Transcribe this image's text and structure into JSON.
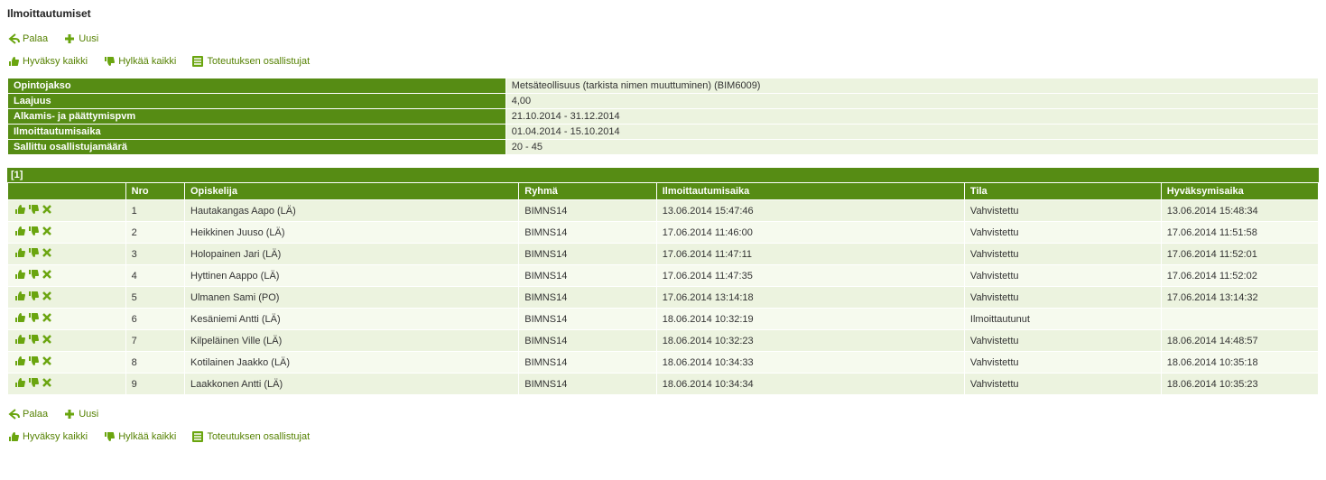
{
  "page": {
    "title": "Ilmoittautumiset"
  },
  "actions": {
    "back": "Palaa",
    "new": "Uusi",
    "accept_all": "Hyväksy kaikki",
    "reject_all": "Hylkää kaikki",
    "participants": "Toteutuksen osallistujat"
  },
  "info": {
    "labels": {
      "course": "Opintojakso",
      "extent": "Laajuus",
      "dates": "Alkamis- ja päättymispvm",
      "reg_period": "Ilmoittautumisaika",
      "allowed": "Sallittu osallistujamäärä"
    },
    "values": {
      "course": "Metsäteollisuus (tarkista nimen muuttuminen) (BIM6009)",
      "extent": "4,00",
      "dates": "21.10.2014 - 31.12.2014",
      "reg_period": "01.04.2014 - 15.10.2014",
      "allowed": "20 - 45"
    }
  },
  "pager": "[1]",
  "columns": {
    "actions": "",
    "nro": "Nro",
    "student": "Opiskelija",
    "group": "Ryhmä",
    "reg_time": "Ilmoittautumisaika",
    "status": "Tila",
    "accept_time": "Hyväksymisaika"
  },
  "col_widths": {
    "actions": "9%",
    "nro": "4.5%",
    "student": "25.5%",
    "group": "10.5%",
    "reg_time": "23.5%",
    "status": "15%",
    "accept_time": "12%"
  },
  "rows": [
    {
      "nro": "1",
      "student": "Hautakangas Aapo (LÄ)",
      "group": "BIMNS14",
      "reg_time": "13.06.2014 15:47:46",
      "status": "Vahvistettu",
      "accept_time": "13.06.2014 15:48:34"
    },
    {
      "nro": "2",
      "student": "Heikkinen Juuso (LÄ)",
      "group": "BIMNS14",
      "reg_time": "17.06.2014 11:46:00",
      "status": "Vahvistettu",
      "accept_time": "17.06.2014 11:51:58"
    },
    {
      "nro": "3",
      "student": "Holopainen Jari (LÄ)",
      "group": "BIMNS14",
      "reg_time": "17.06.2014 11:47:11",
      "status": "Vahvistettu",
      "accept_time": "17.06.2014 11:52:01"
    },
    {
      "nro": "4",
      "student": "Hyttinen Aappo (LÄ)",
      "group": "BIMNS14",
      "reg_time": "17.06.2014 11:47:35",
      "status": "Vahvistettu",
      "accept_time": "17.06.2014 11:52:02"
    },
    {
      "nro": "5",
      "student": "Ulmanen Sami (PO)",
      "group": "BIMNS14",
      "reg_time": "17.06.2014 13:14:18",
      "status": "Vahvistettu",
      "accept_time": "17.06.2014 13:14:32"
    },
    {
      "nro": "6",
      "student": "Kesäniemi Antti (LÄ)",
      "group": "BIMNS14",
      "reg_time": "18.06.2014 10:32:19",
      "status": "Ilmoittautunut",
      "accept_time": ""
    },
    {
      "nro": "7",
      "student": "Kilpeläinen Ville (LÄ)",
      "group": "BIMNS14",
      "reg_time": "18.06.2014 10:32:23",
      "status": "Vahvistettu",
      "accept_time": "18.06.2014 14:48:57"
    },
    {
      "nro": "8",
      "student": "Kotilainen Jaakko (LÄ)",
      "group": "BIMNS14",
      "reg_time": "18.06.2014 10:34:33",
      "status": "Vahvistettu",
      "accept_time": "18.06.2014 10:35:18"
    },
    {
      "nro": "9",
      "student": "Laakkonen Antti (LÄ)",
      "group": "BIMNS14",
      "reg_time": "18.06.2014 10:34:34",
      "status": "Vahvistettu",
      "accept_time": "18.06.2014 10:35:23"
    }
  ],
  "colors": {
    "header_bg": "#568c14",
    "row_odd": "#ecf3df",
    "row_even": "#f6faee",
    "link": "#568203",
    "icon_green": "#6aa50f",
    "icon_dark": "#3b6e0a"
  }
}
